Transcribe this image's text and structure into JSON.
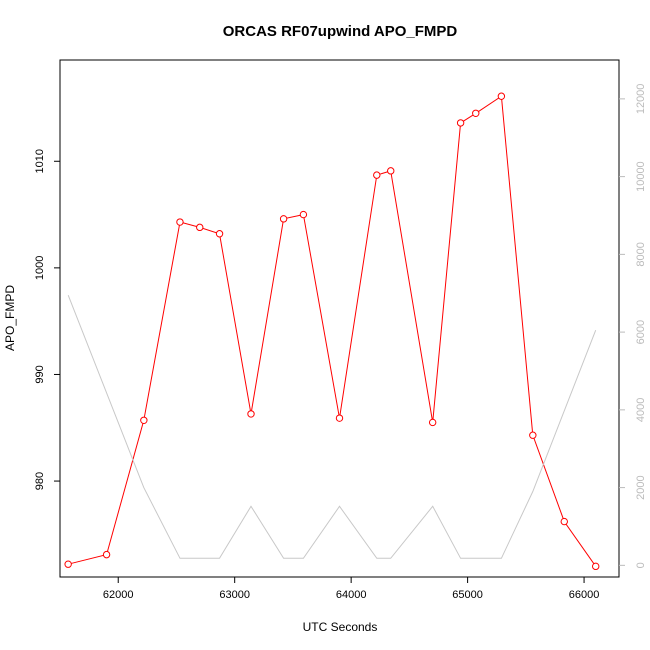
{
  "chart_data": {
    "type": "line",
    "title": "ORCAS RF07upwind APO_FMPD",
    "xlabel": "UTC Seconds",
    "ylabel": "APO_FMPD",
    "xlim": [
      61500,
      66300
    ],
    "ylim": [
      971,
      1019.5
    ],
    "y2lim": [
      -300,
      13000
    ],
    "x_ticks": [
      62000,
      63000,
      64000,
      65000,
      66000
    ],
    "x_tick_labels": [
      "62000",
      "63000",
      "64000",
      "65000",
      "66000"
    ],
    "y_ticks": [
      980,
      990,
      1000,
      1010
    ],
    "y_tick_labels": [
      "980",
      "990",
      "1000",
      "1010"
    ],
    "y2_ticks": [
      0,
      2000,
      4000,
      6000,
      8000,
      10000,
      12000
    ],
    "y2_tick_labels": [
      "0",
      "2000",
      "4000",
      "6000",
      "8000",
      "10000",
      "12000"
    ],
    "grid": false,
    "series": [
      {
        "axis": "left",
        "color": "#ff0000",
        "marker": "open-circle",
        "x": [
          61570,
          61900,
          62220,
          62530,
          62700,
          62870,
          63140,
          63420,
          63590,
          63900,
          64220,
          64340,
          64700,
          64940,
          65070,
          65290,
          65560,
          65830,
          66100
        ],
        "y": [
          972.2,
          973.1,
          985.7,
          1004.3,
          1003.8,
          1003.2,
          986.3,
          1004.6,
          1005.0,
          985.9,
          1008.7,
          1009.1,
          985.5,
          1013.6,
          1014.5,
          1016.1,
          984.3,
          976.2,
          972.0
        ]
      },
      {
        "axis": "right",
        "color": "#c8c8c8",
        "marker": "none",
        "x": [
          61570,
          62220,
          62530,
          62870,
          63140,
          63420,
          63590,
          63900,
          64220,
          64340,
          64700,
          64940,
          65290,
          65560,
          66100
        ],
        "y": [
          6950,
          2000,
          180,
          180,
          1520,
          180,
          180,
          1520,
          180,
          180,
          1520,
          180,
          180,
          1900,
          6050
        ]
      }
    ]
  }
}
